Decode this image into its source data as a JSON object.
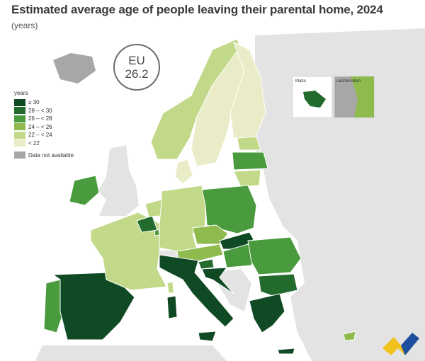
{
  "header": {
    "title": "Estimated average age of people leaving their parental home, 2024",
    "subtitle": "(years)"
  },
  "eu_badge": {
    "label": "EU",
    "value": "26.2"
  },
  "legend": {
    "title": "years",
    "items": [
      {
        "label": "≥ 30",
        "color": "#0f4a24"
      },
      {
        "label": "28 – < 30",
        "color": "#236b2d"
      },
      {
        "label": "26 – < 28",
        "color": "#4a9a3e"
      },
      {
        "label": "24 – < 26",
        "color": "#8fba4e"
      },
      {
        "label": "22 – < 24",
        "color": "#c3d98a"
      },
      {
        "label": "< 22",
        "color": "#e9ecc6"
      }
    ],
    "na": {
      "label": "Data not available",
      "color": "#a7a7a7"
    }
  },
  "insets": {
    "malta": "Malta",
    "liechtenstein": "Liechtenstein"
  },
  "colors": {
    "sea": "#ffffff",
    "non_eu_land": "#e3e3e3",
    "border": "#ffffff"
  }
}
